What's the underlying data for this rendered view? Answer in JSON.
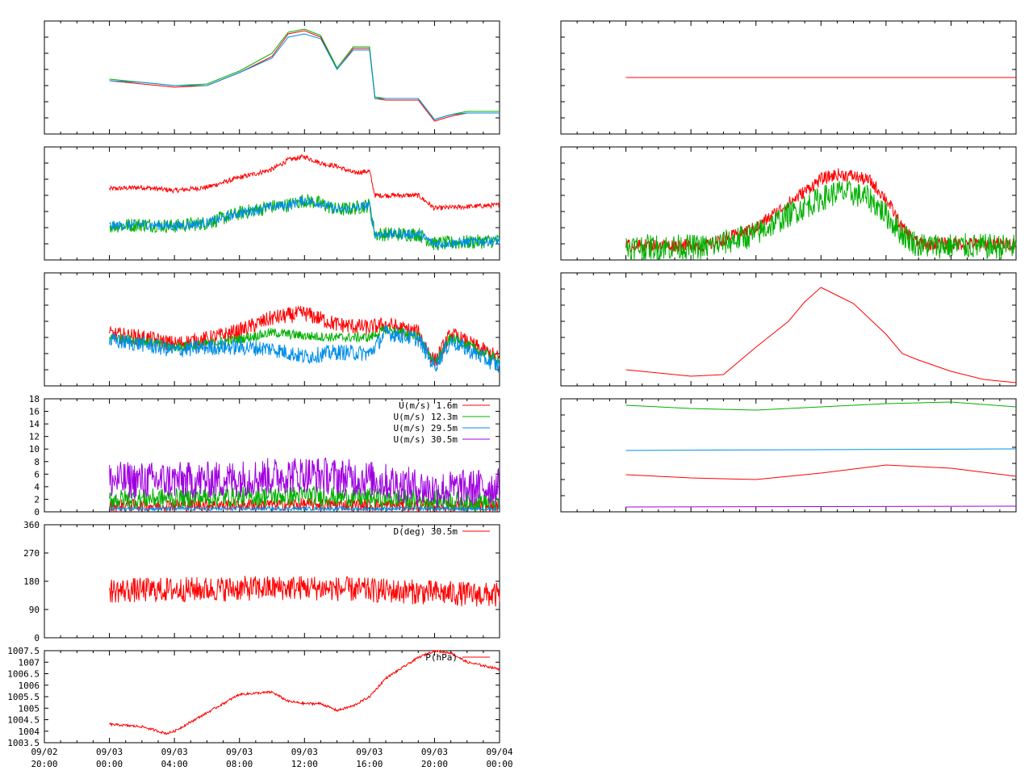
{
  "chart_data": [
    {
      "id": "p1",
      "type": "line",
      "panel": "left-1",
      "x_range": [
        "09/02 20:00",
        "09/04 00:00"
      ],
      "y_ticks_shown": false,
      "ylim": [
        0,
        7
      ],
      "series": [
        {
          "color": "#ff0000",
          "x": [
            "09/03 00:00",
            "09/03 02:00",
            "09/03 04:00",
            "09/03 06:00",
            "09/03 08:00",
            "09/03 10:00",
            "09/03 11:00",
            "09/03 12:00",
            "09/03 13:00",
            "09/03 14:00",
            "09/03 15:00",
            "09/03 16:00",
            "09/03 16:20",
            "09/03 17:00",
            "09/03 19:00",
            "09/03 20:00",
            "09/03 21:00",
            "09/03 22:00",
            "09/04 00:00"
          ],
          "values": [
            3.3,
            3.1,
            2.9,
            3.0,
            3.8,
            4.8,
            6.2,
            6.4,
            6.0,
            4.0,
            5.3,
            5.3,
            2.2,
            2.1,
            2.1,
            0.8,
            1.1,
            1.3,
            1.3
          ]
        },
        {
          "color": "#00b000",
          "x": [
            "09/03 00:00",
            "09/03 02:00",
            "09/03 04:00",
            "09/03 06:00",
            "09/03 08:00",
            "09/03 10:00",
            "09/03 11:00",
            "09/03 12:00",
            "09/03 13:00",
            "09/03 14:00",
            "09/03 15:00",
            "09/03 16:00",
            "09/03 16:20",
            "09/03 17:00",
            "09/03 19:00",
            "09/03 20:00",
            "09/03 21:00",
            "09/03 22:00",
            "09/04 00:00"
          ],
          "values": [
            3.4,
            3.2,
            3.0,
            3.1,
            3.9,
            5.0,
            6.3,
            6.5,
            6.1,
            4.1,
            5.4,
            5.4,
            2.3,
            2.2,
            2.2,
            0.9,
            1.2,
            1.4,
            1.4
          ]
        },
        {
          "color": "#008ee6",
          "x": [
            "09/03 00:00",
            "09/03 02:00",
            "09/03 04:00",
            "09/03 06:00",
            "09/03 08:00",
            "09/03 10:00",
            "09/03 11:00",
            "09/03 12:00",
            "09/03 13:00",
            "09/03 14:00",
            "09/03 15:00",
            "09/03 16:00",
            "09/03 16:20",
            "09/03 17:00",
            "09/03 19:00",
            "09/03 20:00",
            "09/03 21:00",
            "09/03 22:00",
            "09/04 00:00"
          ],
          "values": [
            3.3,
            3.2,
            3.0,
            3.0,
            3.8,
            4.7,
            6.0,
            6.2,
            5.9,
            4.0,
            5.2,
            5.2,
            2.2,
            2.2,
            2.2,
            0.9,
            1.2,
            1.3,
            1.3
          ]
        }
      ]
    },
    {
      "id": "p2",
      "type": "line",
      "panel": "left-2",
      "x_range": [
        "09/02 20:00",
        "09/04 00:00"
      ],
      "y_ticks_shown": false,
      "ylim": [
        0,
        7
      ],
      "series": [
        {
          "color": "#ff0000",
          "noise": 0.15,
          "x": [
            "09/03 00:00",
            "09/03 02:00",
            "09/03 04:00",
            "09/03 06:00",
            "09/03 08:00",
            "09/03 10:00",
            "09/03 11:00",
            "09/03 12:00",
            "09/03 13:00",
            "09/03 14:00",
            "09/03 15:00",
            "09/03 16:00",
            "09/03 16:20",
            "09/03 19:00",
            "09/03 20:00",
            "09/04 00:00"
          ],
          "values": [
            4.4,
            4.5,
            4.3,
            4.5,
            5.1,
            5.6,
            6.2,
            6.4,
            6.0,
            5.8,
            5.4,
            5.5,
            4.0,
            4.0,
            3.2,
            3.4
          ]
        },
        {
          "color": "#00b000",
          "noise": 0.45,
          "x": [
            "09/03 00:00",
            "09/03 02:00",
            "09/03 04:00",
            "09/03 06:00",
            "09/03 08:00",
            "09/03 10:00",
            "09/03 11:00",
            "09/03 12:00",
            "09/03 13:00",
            "09/03 14:00",
            "09/03 15:00",
            "09/03 16:00",
            "09/03 16:20",
            "09/03 19:00",
            "09/03 20:00",
            "09/04 00:00"
          ],
          "values": [
            2.1,
            2.2,
            2.1,
            2.3,
            2.9,
            3.3,
            3.4,
            3.7,
            3.5,
            3.1,
            3.2,
            3.4,
            1.6,
            1.6,
            1.0,
            1.2
          ]
        },
        {
          "color": "#008ee6",
          "noise": 0.3,
          "x": [
            "09/03 00:00",
            "09/03 02:00",
            "09/03 04:00",
            "09/03 06:00",
            "09/03 08:00",
            "09/03 10:00",
            "09/03 11:00",
            "09/03 12:00",
            "09/03 13:00",
            "09/03 14:00",
            "09/03 15:00",
            "09/03 16:00",
            "09/03 16:20",
            "09/03 19:00",
            "09/03 20:00",
            "09/04 00:00"
          ],
          "values": [
            2.1,
            2.2,
            2.1,
            2.3,
            2.9,
            3.3,
            3.4,
            3.7,
            3.5,
            3.1,
            3.2,
            3.4,
            1.6,
            1.6,
            1.0,
            1.2
          ]
        }
      ]
    },
    {
      "id": "p3",
      "type": "line",
      "panel": "left-3",
      "x_range": [
        "09/02 20:00",
        "09/04 00:00"
      ],
      "y_ticks_shown": false,
      "ylim": [
        0,
        7
      ],
      "series": [
        {
          "color": "#ff0000",
          "noise": 0.5,
          "x": [
            "09/03 00:00",
            "09/03 02:00",
            "09/03 04:00",
            "09/03 06:00",
            "09/03 08:00",
            "09/03 10:00",
            "09/03 12:00",
            "09/03 14:00",
            "09/03 16:00",
            "09/03 17:00",
            "09/03 19:00",
            "09/03 20:00",
            "09/03 21:00",
            "09/04 00:00"
          ],
          "values": [
            3.2,
            3.0,
            2.6,
            2.9,
            3.4,
            4.2,
            4.5,
            3.8,
            3.6,
            3.8,
            3.3,
            1.5,
            3.2,
            1.7
          ]
        },
        {
          "color": "#00b000",
          "noise": 0.3,
          "x": [
            "09/03 00:00",
            "09/03 02:00",
            "09/03 04:00",
            "09/03 06:00",
            "09/03 08:00",
            "09/03 10:00",
            "09/03 12:00",
            "09/03 14:00",
            "09/03 16:00",
            "09/03 17:00",
            "09/03 19:00",
            "09/03 20:00",
            "09/03 21:00",
            "09/04 00:00"
          ],
          "values": [
            3.0,
            2.8,
            2.4,
            2.6,
            2.9,
            3.3,
            3.1,
            3.0,
            3.0,
            3.5,
            3.1,
            1.4,
            3.0,
            1.6
          ]
        },
        {
          "color": "#008ee6",
          "noise": 0.5,
          "x": [
            "09/03 00:00",
            "09/03 02:00",
            "09/03 04:00",
            "09/03 06:00",
            "09/03 08:00",
            "09/03 10:00",
            "09/03 12:00",
            "09/03 14:00",
            "09/03 16:00",
            "09/03 17:00",
            "09/03 19:00",
            "09/03 20:00",
            "09/03 21:00",
            "09/04 00:00"
          ],
          "values": [
            2.8,
            2.6,
            2.2,
            2.4,
            2.4,
            2.3,
            1.8,
            2.1,
            2.0,
            3.3,
            2.9,
            1.2,
            2.8,
            1.2
          ]
        }
      ]
    },
    {
      "id": "p4",
      "type": "line",
      "panel": "left-4",
      "x_range": [
        "09/02 20:00",
        "09/04 00:00"
      ],
      "yticks": [
        "0",
        "2",
        "4",
        "6",
        "8",
        "10",
        "12",
        "14",
        "16",
        "18"
      ],
      "ylim": [
        0,
        18
      ],
      "legend": "top-right",
      "series": [
        {
          "name": "U(m/s)  1.6m",
          "color": "#ff0000",
          "noise": 1.0,
          "x": [
            "09/03 00:00",
            "09/03 12:00",
            "09/04 00:00"
          ],
          "values": [
            1.0,
            1.2,
            0.8
          ]
        },
        {
          "name": "U(m/s) 12.3m",
          "color": "#00b000",
          "noise": 1.6,
          "x": [
            "09/03 00:00",
            "09/03 12:00",
            "09/04 00:00"
          ],
          "values": [
            2.0,
            2.6,
            1.5
          ]
        },
        {
          "name": "U(m/s) 29.5m",
          "color": "#008ee6",
          "noise": 0.3,
          "x": [
            "09/03 00:00",
            "09/04 00:00"
          ],
          "values": [
            0.5,
            0.5
          ]
        },
        {
          "name": "U(m/s) 30.5m",
          "color": "#a000e0",
          "noise": 3.0,
          "x": [
            "09/03 00:00",
            "09/03 06:00",
            "09/03 12:00",
            "09/03 16:00",
            "09/03 20:00",
            "09/04 00:00"
          ],
          "values": [
            5.0,
            5.0,
            6.0,
            5.2,
            3.5,
            4.0
          ]
        }
      ]
    },
    {
      "id": "p5",
      "type": "line",
      "panel": "left-5",
      "x_range": [
        "09/02 20:00",
        "09/04 00:00"
      ],
      "yticks": [
        "0",
        "90",
        "180",
        "270",
        "360"
      ],
      "ylim": [
        0,
        360
      ],
      "legend": "top-right",
      "series": [
        {
          "name": "D(deg)  30.5m",
          "color": "#ff0000",
          "noise": 40,
          "x": [
            "09/03 00:00",
            "09/03 12:00",
            "09/04 00:00"
          ],
          "values": [
            150,
            160,
            135
          ]
        }
      ]
    },
    {
      "id": "p6",
      "type": "line",
      "panel": "left-6",
      "x_range": [
        "09/02 20:00",
        "09/04 00:00"
      ],
      "yticks": [
        "1003.5",
        "1004",
        "1004.5",
        "1005",
        "1005.5",
        "1006",
        "1006.5",
        "1007",
        "1007.5"
      ],
      "ylim": [
        1003.5,
        1007.5
      ],
      "xticks": [
        "09/02\n20:00",
        "09/03\n00:00",
        "09/03\n04:00",
        "09/03\n08:00",
        "09/03\n12:00",
        "09/03\n16:00",
        "09/03\n20:00",
        "09/04\n00:00"
      ],
      "legend": "top-right",
      "series": [
        {
          "name": "P(hPa)",
          "color": "#ff0000",
          "noise": 0.05,
          "x": [
            "09/03 00:00",
            "09/03 02:00",
            "09/03 03:30",
            "09/03 04:00",
            "09/03 06:00",
            "09/03 08:00",
            "09/03 10:00",
            "09/03 11:00",
            "09/03 12:00",
            "09/03 13:00",
            "09/03 14:00",
            "09/03 15:00",
            "09/03 16:00",
            "09/03 17:00",
            "09/03 19:00",
            "09/03 20:00",
            "09/03 21:00",
            "09/03 22:00",
            "09/04 00:00"
          ],
          "values": [
            1004.3,
            1004.2,
            1003.9,
            1004.0,
            1004.8,
            1005.6,
            1005.7,
            1005.3,
            1005.2,
            1005.2,
            1004.9,
            1005.1,
            1005.5,
            1006.3,
            1007.2,
            1007.5,
            1007.4,
            1007.0,
            1006.7
          ]
        }
      ]
    },
    {
      "id": "r1",
      "type": "line",
      "panel": "right-1",
      "x_range": [
        "09/02 20:00",
        "09/04 00:00"
      ],
      "y_ticks_shown": false,
      "ylim": [
        0,
        7
      ],
      "series": [
        {
          "color": "#ff0000",
          "x": [
            "09/03 00:00",
            "09/04 00:00"
          ],
          "values": [
            3.5,
            3.5
          ]
        }
      ]
    },
    {
      "id": "r2",
      "type": "line",
      "panel": "right-2",
      "x_range": [
        "09/02 20:00",
        "09/04 00:00"
      ],
      "y_ticks_shown": false,
      "ylim": [
        0,
        7
      ],
      "series": [
        {
          "color": "#ff0000",
          "noise": 0.4,
          "x": [
            "09/03 00:00",
            "09/03 05:00",
            "09/03 08:00",
            "09/03 10:00",
            "09/03 12:00",
            "09/03 13:00",
            "09/03 14:00",
            "09/03 15:00",
            "09/03 16:00",
            "09/03 17:00",
            "09/03 18:00",
            "09/04 00:00"
          ],
          "values": [
            0.9,
            0.9,
            2.0,
            3.5,
            5.0,
            5.3,
            5.2,
            4.9,
            3.8,
            2.0,
            1.0,
            1.0
          ]
        },
        {
          "color": "#00b000",
          "noise": 0.8,
          "x": [
            "09/03 00:00",
            "09/03 05:00",
            "09/03 08:00",
            "09/03 10:00",
            "09/03 12:00",
            "09/03 13:00",
            "09/03 14:00",
            "09/03 15:00",
            "09/03 16:00",
            "09/03 17:00",
            "09/03 18:00",
            "09/04 00:00"
          ],
          "values": [
            0.8,
            0.8,
            1.6,
            2.8,
            3.8,
            4.2,
            4.1,
            3.8,
            2.8,
            1.6,
            0.9,
            0.8
          ]
        }
      ]
    },
    {
      "id": "r3",
      "type": "line",
      "panel": "right-3",
      "x_range": [
        "09/02 20:00",
        "09/04 00:00"
      ],
      "y_ticks_shown": false,
      "ylim": [
        0,
        7
      ],
      "series": [
        {
          "color": "#ff0000",
          "x": [
            "09/03 00:00",
            "09/03 02:00",
            "09/03 04:00",
            "09/03 06:00",
            "09/03 08:00",
            "09/03 10:00",
            "09/03 11:00",
            "09/03 12:00",
            "09/03 13:00",
            "09/03 14:00",
            "09/03 16:00",
            "09/03 17:00",
            "09/03 18:00",
            "09/03 20:00",
            "09/03 22:00",
            "09/04 00:00"
          ],
          "values": [
            1.0,
            0.8,
            0.6,
            0.7,
            2.4,
            4.0,
            5.2,
            6.1,
            5.6,
            5.1,
            3.2,
            2.0,
            1.6,
            0.9,
            0.4,
            0.2
          ]
        }
      ]
    },
    {
      "id": "r4",
      "type": "line",
      "panel": "right-4",
      "x_range": [
        "09/02 20:00",
        "09/04 00:00"
      ],
      "y_ticks_shown": false,
      "ylim": [
        0,
        7
      ],
      "series": [
        {
          "color": "#00b000",
          "x": [
            "09/03 00:00",
            "09/03 04:00",
            "09/03 08:00",
            "09/03 12:00",
            "09/03 16:00",
            "09/03 20:00",
            "09/04 00:00"
          ],
          "values": [
            6.6,
            6.4,
            6.3,
            6.5,
            6.7,
            6.8,
            6.5
          ]
        },
        {
          "color": "#008ee6",
          "x": [
            "09/03 00:00",
            "09/04 00:00"
          ],
          "values": [
            3.8,
            3.9
          ]
        },
        {
          "color": "#ff0000",
          "x": [
            "09/03 00:00",
            "09/03 04:00",
            "09/03 08:00",
            "09/03 12:00",
            "09/03 16:00",
            "09/03 20:00",
            "09/04 00:00"
          ],
          "values": [
            2.3,
            2.1,
            2.0,
            2.4,
            2.9,
            2.7,
            2.2
          ]
        },
        {
          "color": "#a000e0",
          "x": [
            "09/03 00:00",
            "09/04 00:00"
          ],
          "values": [
            0.3,
            0.35
          ]
        }
      ]
    }
  ]
}
